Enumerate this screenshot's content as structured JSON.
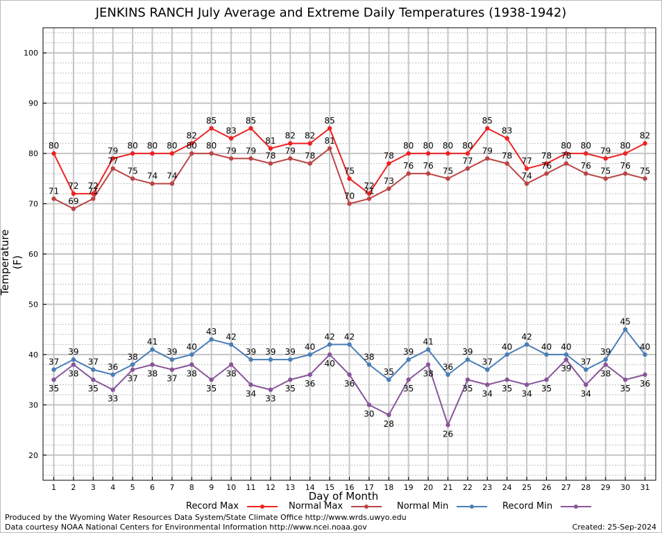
{
  "chart_data": {
    "type": "line",
    "title": "JENKINS RANCH July Average and Extreme Daily Temperatures (1938-1942)",
    "xlabel": "Day of Month",
    "ylabel": "Temperature (F)",
    "x": [
      1,
      2,
      3,
      4,
      5,
      6,
      7,
      8,
      9,
      10,
      11,
      12,
      13,
      14,
      15,
      16,
      17,
      18,
      19,
      20,
      21,
      22,
      23,
      24,
      25,
      26,
      27,
      28,
      29,
      30,
      31
    ],
    "ylim": [
      15,
      105
    ],
    "yticks": [
      20,
      30,
      40,
      50,
      60,
      70,
      80,
      90,
      100
    ],
    "grid": true,
    "legend_position": "bottom",
    "series": [
      {
        "name": "Record Max",
        "color": "#ee2222",
        "label_pos": "above",
        "values": [
          80,
          72,
          72,
          79,
          80,
          80,
          80,
          82,
          85,
          83,
          85,
          81,
          82,
          82,
          85,
          75,
          72,
          78,
          80,
          80,
          80,
          80,
          85,
          83,
          77,
          78,
          80,
          80,
          79,
          80,
          82
        ]
      },
      {
        "name": "Normal Max",
        "color": "#bb4444",
        "label_pos": "above",
        "values": [
          71,
          69,
          71,
          77,
          75,
          74,
          74,
          80,
          80,
          79,
          79,
          78,
          79,
          78,
          81,
          70,
          71,
          73,
          76,
          76,
          75,
          77,
          79,
          78,
          74,
          76,
          78,
          76,
          75,
          76,
          75
        ]
      },
      {
        "name": "Normal Min",
        "color": "#4a7db5",
        "label_pos": "above",
        "values": [
          37,
          39,
          37,
          36,
          38,
          41,
          39,
          40,
          43,
          42,
          39,
          39,
          39,
          40,
          42,
          42,
          38,
          35,
          39,
          41,
          36,
          39,
          37,
          40,
          42,
          40,
          40,
          37,
          39,
          45,
          40
        ]
      },
      {
        "name": "Record Min",
        "color": "#885599",
        "label_pos": "below",
        "values": [
          35,
          38,
          35,
          33,
          37,
          38,
          37,
          38,
          35,
          38,
          34,
          33,
          35,
          36,
          40,
          36,
          30,
          28,
          35,
          38,
          26,
          35,
          34,
          35,
          34,
          35,
          39,
          34,
          38,
          35,
          36
        ]
      }
    ]
  },
  "footer": {
    "produced_by": "Produced by the Wyoming Water Resources Data System/State Climate Office http://www.wrds.uwyo.edu",
    "data_courtesy": "Data courtesy NOAA National Centers for Environmental Information http://www.ncei.noaa.gov",
    "created": "Created:  25-Sep-2024"
  }
}
